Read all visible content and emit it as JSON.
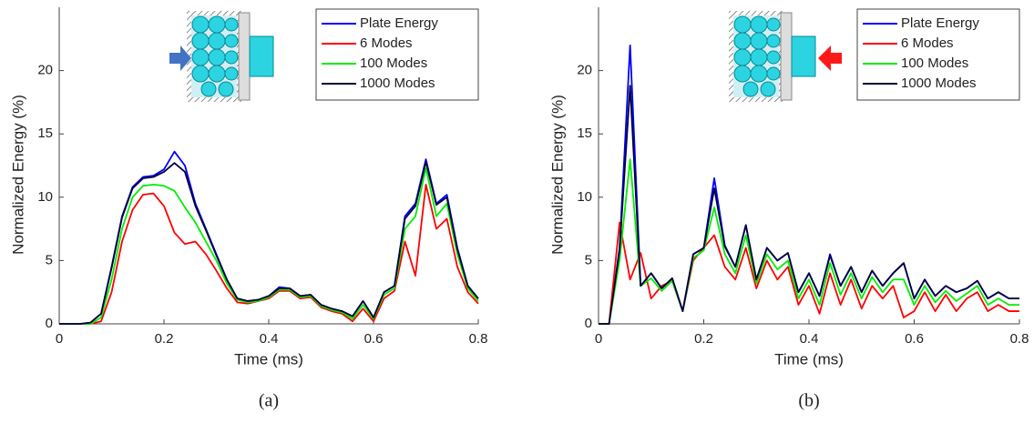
{
  "chart_data": [
    {
      "type": "line",
      "caption": "(a)",
      "xlabel": "Time (ms)",
      "ylabel": "Normalized Energy (%)",
      "xlim": [
        0,
        0.8
      ],
      "ylim": [
        0,
        25
      ],
      "xticks": [
        0,
        0.2,
        0.4,
        0.6,
        0.8
      ],
      "yticks": [
        0,
        5,
        10,
        15,
        20
      ],
      "legend": "upper right",
      "x": [
        0,
        0.02,
        0.04,
        0.06,
        0.08,
        0.1,
        0.12,
        0.14,
        0.16,
        0.18,
        0.2,
        0.22,
        0.24,
        0.26,
        0.28,
        0.3,
        0.32,
        0.34,
        0.36,
        0.38,
        0.4,
        0.42,
        0.44,
        0.46,
        0.48,
        0.5,
        0.52,
        0.54,
        0.56,
        0.58,
        0.6,
        0.62,
        0.64,
        0.66,
        0.68,
        0.7,
        0.72,
        0.74,
        0.76,
        0.78,
        0.8
      ],
      "series": [
        {
          "name": "Plate Energy",
          "color": "#0000ff",
          "values": [
            0,
            0,
            0,
            0.1,
            0.8,
            4.5,
            8.5,
            10.8,
            11.6,
            11.7,
            12.2,
            13.6,
            12.5,
            9.5,
            7.5,
            5.5,
            3.5,
            2.0,
            1.8,
            1.9,
            2.2,
            2.9,
            2.8,
            2.2,
            2.3,
            1.5,
            1.2,
            1.0,
            0.6,
            1.8,
            0.5,
            2.5,
            3.0,
            8.5,
            9.5,
            13.0,
            9.5,
            10.2,
            6.0,
            3.0,
            2.0
          ]
        },
        {
          "name": "6 Modes",
          "color": "#ff0000",
          "values": [
            0,
            0,
            0,
            0,
            0.2,
            2.5,
            6.5,
            9.0,
            10.2,
            10.3,
            9.3,
            7.2,
            6.3,
            6.5,
            5.5,
            4.2,
            2.8,
            1.7,
            1.6,
            1.8,
            2.0,
            2.6,
            2.6,
            2.0,
            2.1,
            1.3,
            1.0,
            0.8,
            0.2,
            1.2,
            0.2,
            2.0,
            2.6,
            6.5,
            3.8,
            11.0,
            7.5,
            8.3,
            4.5,
            2.5,
            1.6
          ]
        },
        {
          "name": "100 Modes",
          "color": "#00ee00",
          "values": [
            0,
            0,
            0,
            0,
            0.5,
            3.5,
            7.5,
            10.0,
            10.9,
            11.0,
            10.9,
            10.5,
            9.2,
            8.0,
            6.5,
            5.0,
            3.2,
            1.9,
            1.7,
            1.8,
            2.1,
            2.7,
            2.7,
            2.1,
            2.2,
            1.4,
            1.1,
            0.9,
            0.4,
            1.5,
            0.4,
            2.3,
            2.8,
            7.5,
            8.5,
            12.3,
            8.5,
            9.5,
            5.5,
            2.8,
            1.8
          ]
        },
        {
          "name": "1000 Modes",
          "color": "#00003a",
          "values": [
            0,
            0,
            0,
            0.1,
            0.8,
            4.4,
            8.4,
            10.7,
            11.5,
            11.6,
            12.0,
            12.7,
            12.0,
            9.3,
            7.4,
            5.4,
            3.5,
            2.0,
            1.8,
            1.9,
            2.2,
            2.8,
            2.8,
            2.2,
            2.3,
            1.5,
            1.2,
            1.0,
            0.6,
            1.8,
            0.5,
            2.5,
            3.0,
            8.3,
            9.3,
            12.8,
            9.4,
            10.0,
            5.9,
            3.0,
            2.0
          ]
        }
      ]
    },
    {
      "type": "line",
      "caption": "(b)",
      "xlabel": "Time (ms)",
      "ylabel": "Normalized Energy (%)",
      "xlim": [
        0,
        0.8
      ],
      "ylim": [
        0,
        25
      ],
      "xticks": [
        0,
        0.2,
        0.4,
        0.6,
        0.8
      ],
      "yticks": [
        0,
        5,
        10,
        15,
        20
      ],
      "legend": "upper right",
      "x": [
        0,
        0.02,
        0.04,
        0.06,
        0.08,
        0.1,
        0.12,
        0.14,
        0.16,
        0.18,
        0.2,
        0.22,
        0.24,
        0.26,
        0.28,
        0.3,
        0.32,
        0.34,
        0.36,
        0.38,
        0.4,
        0.42,
        0.44,
        0.46,
        0.48,
        0.5,
        0.52,
        0.54,
        0.56,
        0.58,
        0.6,
        0.62,
        0.64,
        0.66,
        0.68,
        0.7,
        0.72,
        0.74,
        0.76,
        0.78,
        0.8
      ],
      "series": [
        {
          "name": "Plate Energy",
          "color": "#0000ff",
          "values": [
            0,
            0,
            6,
            22,
            3,
            4,
            2.8,
            3.6,
            1,
            5.5,
            6,
            11.5,
            6.2,
            4.5,
            7.8,
            3.5,
            6,
            5,
            5.6,
            2.5,
            4,
            2.2,
            5.5,
            3,
            4.5,
            2.5,
            4.2,
            3,
            4,
            4.8,
            2,
            3.5,
            2.2,
            3,
            2.5,
            2.8,
            3.4,
            2,
            2.5,
            2,
            2
          ]
        },
        {
          "name": "6 Modes",
          "color": "#ff0000",
          "values": [
            0,
            0,
            8,
            3.5,
            5.6,
            2,
            3,
            3.4,
            1,
            5,
            6,
            7,
            4.5,
            3.5,
            6,
            2.8,
            5,
            3.5,
            4.5,
            1.5,
            3,
            0.8,
            4,
            1.5,
            3.5,
            1.2,
            3,
            2,
            3,
            0.5,
            1,
            2.5,
            1,
            2.3,
            1,
            2,
            2.5,
            1,
            1.5,
            1,
            1
          ]
        },
        {
          "name": "100 Modes",
          "color": "#00ee00",
          "values": [
            0,
            0,
            5,
            13,
            3,
            3.6,
            2.6,
            3.4,
            1,
            5.2,
            5.8,
            9.2,
            5.5,
            4,
            7,
            3.2,
            5.5,
            4.3,
            5,
            2,
            3.5,
            1.5,
            4.8,
            2.3,
            4,
            2,
            3.7,
            2.5,
            3.5,
            3.5,
            1.5,
            3,
            1.7,
            2.6,
            1.8,
            2.4,
            3,
            1.5,
            2,
            1.5,
            1.5
          ]
        },
        {
          "name": "1000 Modes",
          "color": "#00003a",
          "values": [
            0,
            0,
            5.8,
            18.8,
            3,
            4,
            2.8,
            3.6,
            1,
            5.5,
            6,
            10.7,
            6.1,
            4.5,
            7.8,
            3.5,
            6,
            5,
            5.6,
            2.5,
            4,
            2.2,
            5.4,
            3,
            4.5,
            2.5,
            4.2,
            3,
            4,
            4.8,
            2,
            3.5,
            2.2,
            3,
            2.5,
            2.8,
            3.4,
            2,
            2.5,
            2,
            2
          ]
        }
      ]
    }
  ]
}
